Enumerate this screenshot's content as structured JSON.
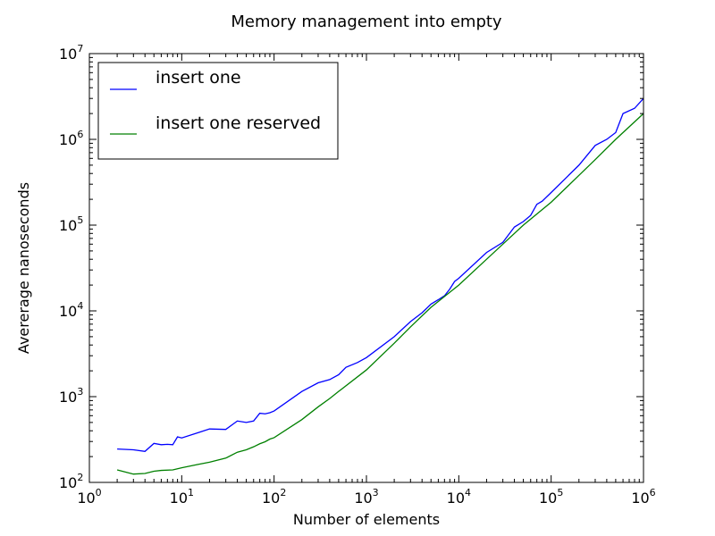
{
  "chart_data": {
    "type": "line",
    "title": "Memory management into empty",
    "xlabel": "Number of elements",
    "ylabel": "Avererage nanoseconds",
    "xscale": "log",
    "yscale": "log",
    "xlim": [
      1,
      1000000
    ],
    "ylim": [
      100,
      10000000
    ],
    "x_ticks": [
      {
        "value": 1,
        "base": "10",
        "exp": "0"
      },
      {
        "value": 10,
        "base": "10",
        "exp": "1"
      },
      {
        "value": 100,
        "base": "10",
        "exp": "2"
      },
      {
        "value": 1000,
        "base": "10",
        "exp": "3"
      },
      {
        "value": 10000,
        "base": "10",
        "exp": "4"
      },
      {
        "value": 100000,
        "base": "10",
        "exp": "5"
      },
      {
        "value": 1000000,
        "base": "10",
        "exp": "6"
      }
    ],
    "y_ticks": [
      {
        "value": 100,
        "base": "10",
        "exp": "2"
      },
      {
        "value": 1000,
        "base": "10",
        "exp": "3"
      },
      {
        "value": 10000,
        "base": "10",
        "exp": "4"
      },
      {
        "value": 100000,
        "base": "10",
        "exp": "5"
      },
      {
        "value": 1000000,
        "base": "10",
        "exp": "6"
      },
      {
        "value": 10000000,
        "base": "10",
        "exp": "7"
      }
    ],
    "grid": false,
    "legend_position": "top-left",
    "series": [
      {
        "name": "insert one",
        "color": "#0000ff",
        "points": [
          [
            2,
            245
          ],
          [
            3,
            240
          ],
          [
            4,
            230
          ],
          [
            5,
            285
          ],
          [
            6,
            275
          ],
          [
            7,
            278
          ],
          [
            8,
            275
          ],
          [
            9,
            340
          ],
          [
            10,
            330
          ],
          [
            15,
            380
          ],
          [
            20,
            420
          ],
          [
            30,
            415
          ],
          [
            40,
            520
          ],
          [
            50,
            500
          ],
          [
            60,
            520
          ],
          [
            70,
            640
          ],
          [
            80,
            630
          ],
          [
            90,
            650
          ],
          [
            100,
            680
          ],
          [
            200,
            1150
          ],
          [
            300,
            1450
          ],
          [
            400,
            1580
          ],
          [
            500,
            1800
          ],
          [
            600,
            2200
          ],
          [
            800,
            2500
          ],
          [
            1000,
            2850
          ],
          [
            2000,
            5000
          ],
          [
            3000,
            7500
          ],
          [
            4000,
            9500
          ],
          [
            5000,
            12000
          ],
          [
            6000,
            13500
          ],
          [
            7000,
            15000
          ],
          [
            8000,
            18000
          ],
          [
            9000,
            22000
          ],
          [
            10000,
            24000
          ],
          [
            20000,
            48000
          ],
          [
            30000,
            63000
          ],
          [
            40000,
            95000
          ],
          [
            50000,
            110000
          ],
          [
            60000,
            130000
          ],
          [
            70000,
            175000
          ],
          [
            80000,
            190000
          ],
          [
            100000,
            240000
          ],
          [
            200000,
            500000
          ],
          [
            300000,
            850000
          ],
          [
            400000,
            1000000
          ],
          [
            500000,
            1200000
          ],
          [
            600000,
            2000000
          ],
          [
            800000,
            2300000
          ],
          [
            1000000,
            3000000
          ]
        ]
      },
      {
        "name": "insert one reserved",
        "color": "#008000",
        "points": [
          [
            2,
            140
          ],
          [
            3,
            125
          ],
          [
            4,
            127
          ],
          [
            5,
            135
          ],
          [
            6,
            138
          ],
          [
            8,
            140
          ],
          [
            10,
            148
          ],
          [
            15,
            162
          ],
          [
            20,
            172
          ],
          [
            30,
            192
          ],
          [
            40,
            225
          ],
          [
            50,
            240
          ],
          [
            60,
            260
          ],
          [
            70,
            282
          ],
          [
            80,
            298
          ],
          [
            90,
            320
          ],
          [
            100,
            332
          ],
          [
            200,
            540
          ],
          [
            300,
            760
          ],
          [
            400,
            950
          ],
          [
            500,
            1150
          ],
          [
            1000,
            2050
          ],
          [
            2000,
            4200
          ],
          [
            3000,
            6500
          ],
          [
            5000,
            11000
          ],
          [
            10000,
            20000
          ],
          [
            20000,
            40000
          ],
          [
            30000,
            60000
          ],
          [
            50000,
            100000
          ],
          [
            100000,
            185000
          ],
          [
            200000,
            380000
          ],
          [
            300000,
            580000
          ],
          [
            500000,
            1000000
          ],
          [
            1000000,
            2000000
          ]
        ]
      }
    ]
  }
}
